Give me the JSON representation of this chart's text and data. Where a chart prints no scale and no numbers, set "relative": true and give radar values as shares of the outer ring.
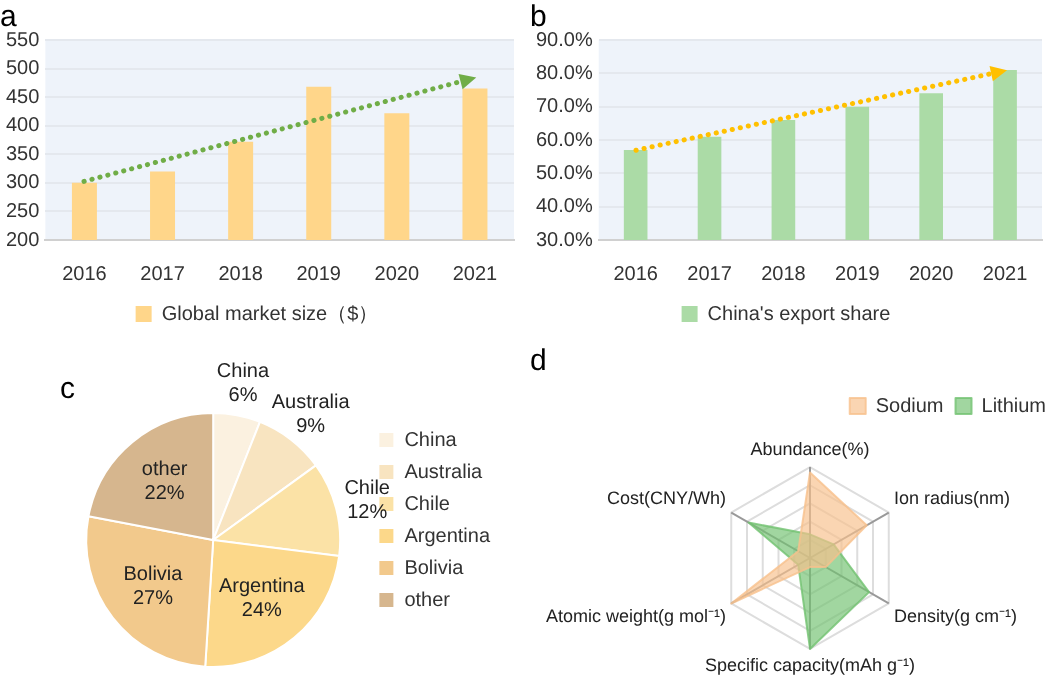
{
  "chart_data": [
    {
      "type": "bar",
      "title": "a",
      "categories": [
        "2016",
        "2017",
        "2018",
        "2019",
        "2020",
        "2021"
      ],
      "series": [
        {
          "name": "Global market size（$）",
          "color": "#ffd68a",
          "values": [
            300,
            320,
            372,
            468,
            422,
            465
          ]
        }
      ],
      "ylim": [
        200,
        550
      ],
      "yticks": [
        200,
        250,
        300,
        350,
        400,
        450,
        500,
        550
      ],
      "grid": "y",
      "legend": "bottom"
    },
    {
      "type": "bar",
      "title": "b",
      "categories": [
        "2016",
        "2017",
        "2018",
        "2019",
        "2020",
        "2021"
      ],
      "series": [
        {
          "name": "China's export share",
          "color": "#abdba6",
          "values": [
            57,
            61,
            66,
            70,
            74,
            81
          ]
        }
      ],
      "ylim": [
        30,
        90
      ],
      "yticks": [
        {
          "value": 30,
          "label": "30.0%"
        },
        {
          "value": 40,
          "label": "40.0%"
        },
        {
          "value": 50,
          "label": "50.0%"
        },
        {
          "value": 60,
          "label": "60.0%"
        },
        {
          "value": 70,
          "label": "70.0%"
        },
        {
          "value": 80,
          "label": "80.0%"
        },
        {
          "value": 90,
          "label": "90.0%"
        }
      ],
      "grid": "y",
      "legend": "bottom"
    },
    {
      "type": "pie",
      "title": "c",
      "categories": [
        "China",
        "Australia",
        "Chile",
        "Argentina",
        "Bolivia",
        "other"
      ],
      "values": [
        6,
        9,
        12,
        24,
        27,
        22
      ],
      "value_labels": [
        "6%",
        "9%",
        "12%",
        "24%",
        "27%",
        "22%"
      ],
      "colors": [
        "#fbf1e0",
        "#f8e4c0",
        "#fbe2a6",
        "#fcd88a",
        "#f2c98c",
        "#d6b68e"
      ],
      "legend": "right"
    },
    {
      "type": "radar",
      "title": "d",
      "relative": true,
      "grid": true,
      "marker": "none",
      "categories": [
        "Abundance(%)",
        "Ion radius(nm)",
        "Density(g cm⁻¹)",
        "Specific capacity(mAh g⁻¹)",
        "Atomic weight(g mol⁻¹)",
        "Cost(CNY/Wh)"
      ],
      "series": [
        {
          "name": "Sodium",
          "color": "#f7c08c",
          "values": [
            0.94,
            0.72,
            0.2,
            0.1,
            1,
            0.15
          ]
        },
        {
          "name": "Lithium",
          "color": "#72c271",
          "values": [
            0.26,
            0.3,
            0.75,
            1,
            0.15,
            0.78
          ]
        }
      ],
      "legend": "top right"
    }
  ]
}
